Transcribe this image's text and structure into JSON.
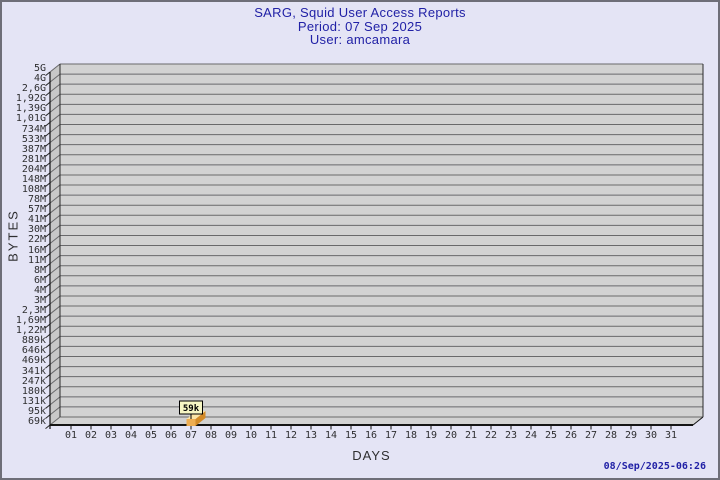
{
  "header": {
    "title": "SARG, Squid User Access Reports",
    "period": "Period: 07 Sep 2025",
    "user": "User: amcamara"
  },
  "chart_data": {
    "type": "bar",
    "style": "3d",
    "title": "SARG, Squid User Access Reports",
    "subtitle_lines": [
      "Period: 07 Sep 2025",
      "User: amcamara"
    ],
    "xlabel": "DAYS",
    "ylabel": "BYTES",
    "y_scale": "log",
    "ylim_labels": [
      "69k",
      "5G"
    ],
    "grid": true,
    "legend": "none",
    "y_tick_labels": [
      "5G",
      "4G",
      "2,6G",
      "1,92G",
      "1,39G",
      "1,01G",
      "734M",
      "533M",
      "387M",
      "281M",
      "204M",
      "148M",
      "108M",
      "78M",
      "57M",
      "41M",
      "30M",
      "22M",
      "16M",
      "11M",
      "8M",
      "6M",
      "4M",
      "3M",
      "2,3M",
      "1,69M",
      "1,22M",
      "889k",
      "646k",
      "469k",
      "341k",
      "247k",
      "180k",
      "131k",
      "95k",
      "69k"
    ],
    "x_tick_labels": [
      "01",
      "02",
      "03",
      "04",
      "05",
      "06",
      "07",
      "08",
      "09",
      "10",
      "11",
      "12",
      "13",
      "14",
      "15",
      "16",
      "17",
      "18",
      "19",
      "20",
      "21",
      "22",
      "23",
      "24",
      "25",
      "26",
      "27",
      "28",
      "29",
      "30",
      "31"
    ],
    "series": [
      {
        "name": "bytes",
        "data": [
          {
            "x": "07",
            "y": 59000,
            "label": "59k"
          }
        ]
      }
    ]
  },
  "footer": {
    "timestamp": "08/Sep/2025-06:26"
  },
  "colors": {
    "background": "#E4E4F5",
    "frame": "#6E6E78",
    "plot_bg": "#D2D2D2",
    "wall_bg": "#C8C8C8",
    "grid": "#69696B",
    "axis": "#2A2A2A",
    "axis_front": "#141414",
    "title": "#2121A6",
    "tick_text": "#2E2E30",
    "bar_front": "#EDAD52",
    "bar_top": "#FBE4A6",
    "bar_side": "#D38B28",
    "value_label_bg": "#F6F6C4",
    "value_label_border": "#000000"
  }
}
